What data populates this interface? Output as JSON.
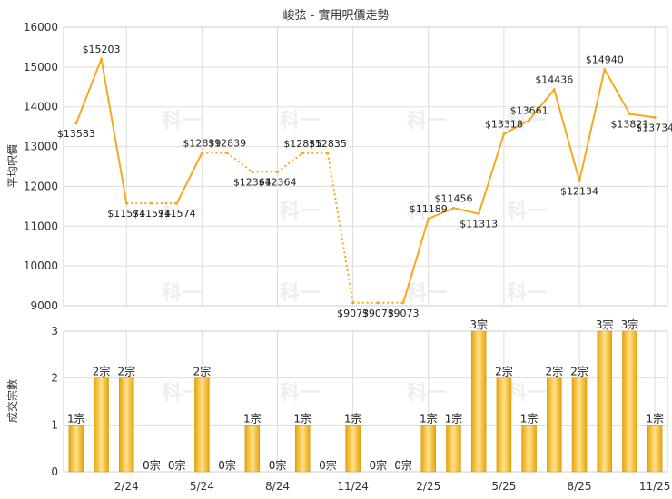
{
  "colors": {
    "line": "#f7a81b",
    "bar_dark": "#e8a40a",
    "bar_light": "#ffe28a",
    "grid": "#dddddd",
    "watermark": "#eeeeee"
  },
  "watermark": "科一",
  "chart_data": [
    {
      "type": "line",
      "title": "峻弦 - 實用呎價走勢",
      "ylabel": "平均呎價",
      "ylim": [
        9000,
        16000
      ],
      "yticks": [
        9000,
        10000,
        11000,
        12000,
        13000,
        14000,
        15000,
        16000
      ],
      "grid": true,
      "x": [
        "2023-12",
        "2024-01",
        "2024-02",
        "2024-03",
        "2024-04",
        "2024-05",
        "2024-06",
        "2024-07",
        "2024-08",
        "2024-09",
        "2024-10",
        "2024-11",
        "2024-12",
        "2025-01",
        "2025-02",
        "2025-03",
        "2025-04",
        "2025-05",
        "2025-06",
        "2025-07",
        "2025-08",
        "2025-09",
        "2025-10",
        "2025-11"
      ],
      "values": [
        13583,
        15203,
        11574,
        11574,
        11574,
        12839,
        12839,
        12364,
        12364,
        12835,
        12835,
        9073,
        9073,
        9073,
        11189,
        11456,
        11313,
        13318,
        13661,
        14436,
        12134,
        14940,
        13821,
        13734
      ],
      "estimated": [
        false,
        false,
        false,
        true,
        false,
        false,
        true,
        false,
        true,
        false,
        true,
        false,
        true,
        false,
        false,
        false,
        false,
        false,
        false,
        false,
        false,
        false,
        false,
        false
      ],
      "labels": [
        "$13583",
        "$15203",
        "$11574",
        "$11574",
        "$11574",
        "$12839",
        "$12839",
        "$12364",
        "$12364",
        "$12835",
        "$12835",
        "$9073",
        "$9073",
        "$9073",
        "$11189",
        "$11456",
        "$11313",
        "$13318",
        "$13661",
        "$14436",
        "$12134",
        "$14940",
        "$13821",
        "$13734"
      ]
    },
    {
      "type": "bar",
      "ylabel": "成交宗數",
      "ylim": [
        0,
        3
      ],
      "yticks": [
        0,
        1,
        2,
        3
      ],
      "grid": true,
      "x": [
        "2023-12",
        "2024-01",
        "2024-02",
        "2024-03",
        "2024-04",
        "2024-05",
        "2024-06",
        "2024-07",
        "2024-08",
        "2024-09",
        "2024-10",
        "2024-11",
        "2024-12",
        "2025-01",
        "2025-02",
        "2025-03",
        "2025-04",
        "2025-05",
        "2025-06",
        "2025-07",
        "2025-08",
        "2025-09",
        "2025-10",
        "2025-11"
      ],
      "values": [
        1,
        2,
        2,
        0,
        0,
        2,
        0,
        1,
        0,
        1,
        0,
        1,
        0,
        0,
        1,
        1,
        3,
        2,
        1,
        2,
        2,
        3,
        3,
        1
      ],
      "labels": [
        "1宗",
        "2宗",
        "2宗",
        "0宗",
        "0宗",
        "2宗",
        "0宗",
        "1宗",
        "0宗",
        "1宗",
        "0宗",
        "1宗",
        "0宗",
        "0宗",
        "1宗",
        "1宗",
        "3宗",
        "2宗",
        "1宗",
        "2宗",
        "2宗",
        "3宗",
        "3宗",
        "1宗"
      ],
      "xtick_labels": [
        "2/24",
        "5/24",
        "8/24",
        "11/24",
        "2/25",
        "5/25",
        "8/25",
        "11/25"
      ]
    }
  ]
}
